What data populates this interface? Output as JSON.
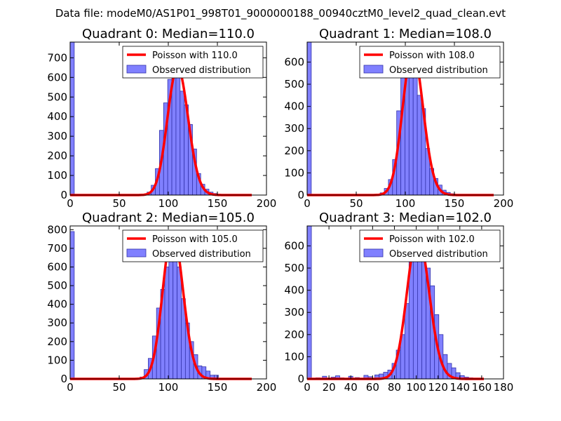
{
  "figure": {
    "suptitle": "Data file: modeM0/AS1P01_998T01_9000000188_00940cztM0_level2_quad_clean.evt"
  },
  "colors": {
    "bar_fill": "#8080ff",
    "bar_edge": "#3333aa",
    "poisson_line": "#ff0000",
    "axes": "#000000",
    "background": "#ffffff"
  },
  "chart_data": [
    {
      "type": "bar",
      "title": "Quadrant 0: Median=110.0",
      "legend": {
        "line": "Poisson with 110.0",
        "bars": "Observed distribution",
        "location": "top-right"
      },
      "xlim": [
        0,
        200
      ],
      "ylim": [
        0,
        780
      ],
      "xticks": [
        0,
        50,
        100,
        150,
        200
      ],
      "yticks": [
        0,
        100,
        200,
        300,
        400,
        500,
        600,
        700
      ],
      "bin_width": 4.2,
      "bins": [
        {
          "x": 0,
          "h": 780
        },
        {
          "x": 70.0,
          "h": 2
        },
        {
          "x": 74.2,
          "h": 5
        },
        {
          "x": 78.4,
          "h": 15
        },
        {
          "x": 82.6,
          "h": 50
        },
        {
          "x": 86.8,
          "h": 135
        },
        {
          "x": 91.0,
          "h": 330
        },
        {
          "x": 95.2,
          "h": 470
        },
        {
          "x": 99.4,
          "h": 590
        },
        {
          "x": 103.6,
          "h": 650
        },
        {
          "x": 107.8,
          "h": 660
        },
        {
          "x": 112.0,
          "h": 530
        },
        {
          "x": 116.2,
          "h": 460
        },
        {
          "x": 120.4,
          "h": 360
        },
        {
          "x": 124.6,
          "h": 235
        },
        {
          "x": 128.8,
          "h": 110
        },
        {
          "x": 133.0,
          "h": 55
        },
        {
          "x": 137.2,
          "h": 30
        },
        {
          "x": 141.4,
          "h": 15
        },
        {
          "x": 145.6,
          "h": 8
        },
        {
          "x": 149.8,
          "h": 4
        }
      ],
      "poisson": {
        "mean": 110.0,
        "scale": 650,
        "x_start": 0,
        "x_end": 185
      }
    },
    {
      "type": "bar",
      "title": "Quadrant 1: Median=108.0",
      "legend": {
        "line": "Poisson with 108.0",
        "bars": "Observed distribution",
        "location": "top-right"
      },
      "xlim": [
        0,
        200
      ],
      "ylim": [
        0,
        690
      ],
      "xticks": [
        0,
        50,
        100,
        150,
        200
      ],
      "yticks": [
        0,
        100,
        200,
        300,
        400,
        500,
        600
      ],
      "bin_width": 4.2,
      "bins": [
        {
          "x": 0,
          "h": 690
        },
        {
          "x": 66.0,
          "h": 2
        },
        {
          "x": 70.2,
          "h": 4
        },
        {
          "x": 74.4,
          "h": 10
        },
        {
          "x": 78.6,
          "h": 30
        },
        {
          "x": 82.8,
          "h": 70
        },
        {
          "x": 87.0,
          "h": 160
        },
        {
          "x": 91.2,
          "h": 380
        },
        {
          "x": 95.4,
          "h": 550
        },
        {
          "x": 99.6,
          "h": 630
        },
        {
          "x": 103.8,
          "h": 640
        },
        {
          "x": 108.0,
          "h": 560
        },
        {
          "x": 112.2,
          "h": 450
        },
        {
          "x": 116.4,
          "h": 390
        },
        {
          "x": 120.6,
          "h": 210
        },
        {
          "x": 124.8,
          "h": 120
        },
        {
          "x": 129.0,
          "h": 75
        },
        {
          "x": 133.2,
          "h": 45
        },
        {
          "x": 137.4,
          "h": 22
        },
        {
          "x": 141.6,
          "h": 12
        },
        {
          "x": 145.8,
          "h": 6
        },
        {
          "x": 150.0,
          "h": 3
        }
      ],
      "poisson": {
        "mean": 108.0,
        "scale": 650,
        "x_start": 0,
        "x_end": 190
      }
    },
    {
      "type": "bar",
      "title": "Quadrant 2: Median=105.0",
      "legend": {
        "line": "Poisson with 105.0",
        "bars": "Observed distribution",
        "location": "top-right"
      },
      "xlim": [
        0,
        200
      ],
      "ylim": [
        0,
        820
      ],
      "xticks": [
        0,
        50,
        100,
        150,
        200
      ],
      "yticks": [
        0,
        100,
        200,
        300,
        400,
        500,
        600,
        700,
        800
      ],
      "bin_width": 4.2,
      "bins": [
        {
          "x": 0,
          "h": 790
        },
        {
          "x": 67.0,
          "h": 3
        },
        {
          "x": 71.2,
          "h": 10
        },
        {
          "x": 75.4,
          "h": 50
        },
        {
          "x": 79.6,
          "h": 110
        },
        {
          "x": 83.8,
          "h": 230
        },
        {
          "x": 88.0,
          "h": 380
        },
        {
          "x": 92.2,
          "h": 480
        },
        {
          "x": 96.4,
          "h": 600
        },
        {
          "x": 100.6,
          "h": 770
        },
        {
          "x": 104.8,
          "h": 750
        },
        {
          "x": 109.0,
          "h": 600
        },
        {
          "x": 113.2,
          "h": 430
        },
        {
          "x": 117.4,
          "h": 300
        },
        {
          "x": 121.6,
          "h": 200
        },
        {
          "x": 125.8,
          "h": 130
        },
        {
          "x": 130.0,
          "h": 70
        },
        {
          "x": 134.2,
          "h": 65
        },
        {
          "x": 138.4,
          "h": 42
        },
        {
          "x": 142.6,
          "h": 20
        },
        {
          "x": 146.8,
          "h": 20
        },
        {
          "x": 151.0,
          "h": 3
        }
      ],
      "poisson": {
        "mean": 105.0,
        "scale": 790,
        "x_start": 0,
        "x_end": 185
      }
    },
    {
      "type": "bar",
      "title": "Quadrant 3: Median=102.0",
      "legend": {
        "line": "Poisson with 102.0",
        "bars": "Observed distribution",
        "location": "top-right"
      },
      "xlim": [
        0,
        180
      ],
      "ylim": [
        0,
        690
      ],
      "xticks": [
        0,
        20,
        40,
        60,
        80,
        100,
        120,
        140,
        160,
        180
      ],
      "yticks": [
        0,
        100,
        200,
        300,
        400,
        500,
        600
      ],
      "bin_width": 3.9,
      "bins": [
        {
          "x": 0,
          "h": 690
        },
        {
          "x": 8.0,
          "h": 5
        },
        {
          "x": 14.0,
          "h": 12
        },
        {
          "x": 22.0,
          "h": 8
        },
        {
          "x": 26.0,
          "h": 14
        },
        {
          "x": 30.0,
          "h": 5
        },
        {
          "x": 38.0,
          "h": 12
        },
        {
          "x": 44.0,
          "h": 6
        },
        {
          "x": 52.0,
          "h": 16
        },
        {
          "x": 56.0,
          "h": 10
        },
        {
          "x": 62.0,
          "h": 18
        },
        {
          "x": 66.0,
          "h": 22
        },
        {
          "x": 70.0,
          "h": 30
        },
        {
          "x": 73.9,
          "h": 40
        },
        {
          "x": 77.8,
          "h": 70
        },
        {
          "x": 81.7,
          "h": 130
        },
        {
          "x": 85.6,
          "h": 200
        },
        {
          "x": 89.5,
          "h": 340
        },
        {
          "x": 93.4,
          "h": 530
        },
        {
          "x": 97.3,
          "h": 630
        },
        {
          "x": 101.2,
          "h": 640
        },
        {
          "x": 105.1,
          "h": 580
        },
        {
          "x": 109.0,
          "h": 500
        },
        {
          "x": 112.9,
          "h": 420
        },
        {
          "x": 116.8,
          "h": 290
        },
        {
          "x": 120.7,
          "h": 200
        },
        {
          "x": 124.6,
          "h": 110
        },
        {
          "x": 128.5,
          "h": 70
        },
        {
          "x": 132.4,
          "h": 50
        },
        {
          "x": 136.3,
          "h": 28
        },
        {
          "x": 140.2,
          "h": 15
        },
        {
          "x": 144.1,
          "h": 8
        },
        {
          "x": 148.0,
          "h": 5
        },
        {
          "x": 151.9,
          "h": 3
        }
      ],
      "poisson": {
        "mean": 102.0,
        "scale": 650,
        "x_start": 0,
        "x_end": 162
      }
    }
  ]
}
